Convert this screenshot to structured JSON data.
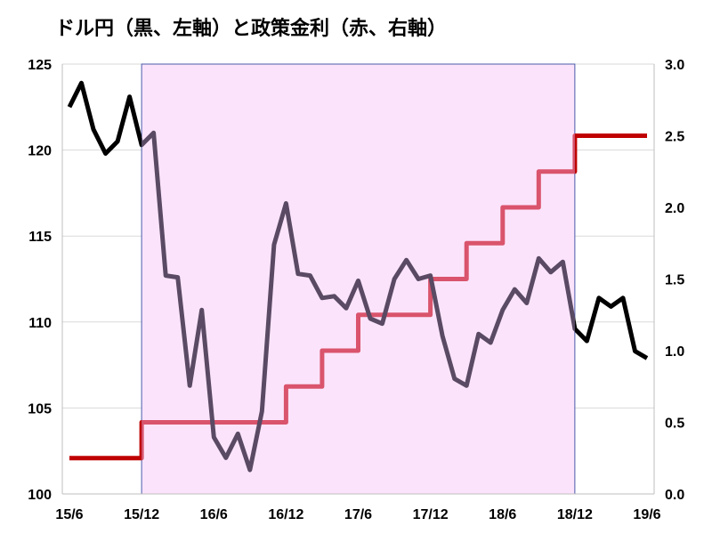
{
  "chart_data": {
    "type": "line",
    "title": "ドル円（黒、左軸）と政策金利（赤、右軸）",
    "x_ticks": [
      "15/6",
      "15/12",
      "16/6",
      "16/12",
      "17/6",
      "17/12",
      "18/6",
      "18/12",
      "19/6"
    ],
    "left_axis": {
      "range": [
        100,
        125
      ],
      "ticks": [
        "100",
        "105",
        "110",
        "115",
        "120",
        "125"
      ]
    },
    "right_axis": {
      "range": [
        0,
        3.0
      ],
      "ticks": [
        "0.0",
        "0.5",
        "1.0",
        "1.5",
        "2.0",
        "2.5",
        "3.0"
      ]
    },
    "highlight_period": [
      "15/12",
      "18/12"
    ],
    "colors": {
      "usdjpy": "#000000",
      "usdjpy_in_period": "#5a4a64",
      "policy_rate": "#c00000",
      "policy_rate_in_period": "#d9546c",
      "highlight_fill": "#fbe4fb",
      "highlight_border": "#4a5aa8"
    },
    "series": [
      {
        "axis": "left",
        "x": [
          "2015-06",
          "2015-07",
          "2015-08",
          "2015-09",
          "2015-10",
          "2015-11",
          "2015-12",
          "2016-01",
          "2016-02",
          "2016-03",
          "2016-04",
          "2016-05",
          "2016-06",
          "2016-07",
          "2016-08",
          "2016-09",
          "2016-10",
          "2016-11",
          "2016-12",
          "2017-01",
          "2017-02",
          "2017-03",
          "2017-04",
          "2017-05",
          "2017-06",
          "2017-07",
          "2017-08",
          "2017-09",
          "2017-10",
          "2017-11",
          "2017-12",
          "2018-01",
          "2018-02",
          "2018-03",
          "2018-04",
          "2018-05",
          "2018-06",
          "2018-07",
          "2018-08",
          "2018-09",
          "2018-10",
          "2018-11",
          "2018-12",
          "2019-01",
          "2019-02",
          "2019-03",
          "2019-04",
          "2019-05",
          "2019-06"
        ],
        "values": [
          122.5,
          123.9,
          121.2,
          119.8,
          120.5,
          123.1,
          120.3,
          121.0,
          112.7,
          112.6,
          106.3,
          110.7,
          103.3,
          102.1,
          103.5,
          101.4,
          104.8,
          114.5,
          116.9,
          112.8,
          112.7,
          111.4,
          111.5,
          110.8,
          112.4,
          110.2,
          109.9,
          112.5,
          113.6,
          112.5,
          112.7,
          109.2,
          106.7,
          106.3,
          109.3,
          108.8,
          110.7,
          111.9,
          111.1,
          113.7,
          112.9,
          113.5,
          109.6,
          108.9,
          111.4,
          110.9,
          111.4,
          108.3,
          107.9
        ]
      },
      {
        "axis": "right",
        "x": [
          "2015-06",
          "2015-12",
          "2016-12",
          "2017-03",
          "2017-06",
          "2017-12",
          "2018-03",
          "2018-06",
          "2018-09",
          "2018-12",
          "2019-06"
        ],
        "values": [
          0.25,
          0.5,
          0.75,
          1.0,
          1.25,
          1.5,
          1.75,
          2.0,
          2.25,
          2.5,
          2.5
        ],
        "step": true
      }
    ]
  }
}
